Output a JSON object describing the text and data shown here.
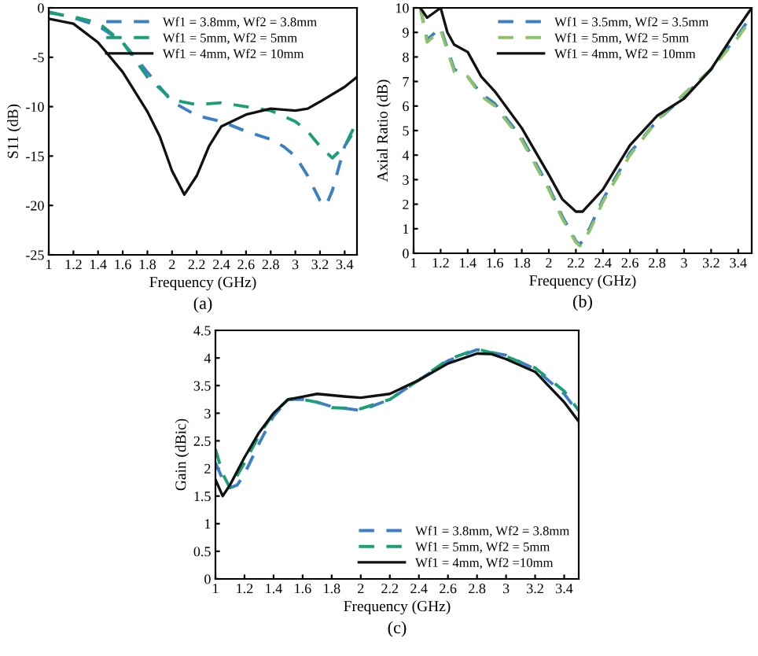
{
  "chart_data": [
    {
      "type": "line",
      "xlabel": "Frequency (GHz)",
      "ylabel": "S11 (dB)",
      "xlim": [
        1,
        3.5
      ],
      "xticks": [
        1,
        1.2,
        1.4,
        1.6,
        1.8,
        2,
        2.2,
        2.4,
        2.6,
        2.8,
        3,
        3.2,
        3.4
      ],
      "ylim": [
        -25,
        0
      ],
      "yticks": [
        -25,
        -20,
        -15,
        -10,
        -5,
        0
      ],
      "grid": false,
      "legend": "top right",
      "annotations": [
        "(a)"
      ],
      "series": [
        {
          "name": "Wf1 = 3.8mm, Wf2 = 3.8mm",
          "color": "#3b7fc4",
          "line_style": "dashed",
          "x": [
            1,
            1.2,
            1.4,
            1.6,
            1.8,
            2.0,
            2.2,
            2.4,
            2.6,
            2.8,
            2.9,
            3.0,
            3.1,
            3.2,
            3.25,
            3.3,
            3.4,
            3.5
          ],
          "values": [
            -0.4,
            -1,
            -1.8,
            -3.5,
            -6.5,
            -9.5,
            -10.9,
            -11.5,
            -12.5,
            -13.3,
            -14,
            -15,
            -17,
            -19.5,
            -20,
            -18.5,
            -14,
            -12
          ]
        },
        {
          "name": "Wf1 = 5mm, Wf2 = 5mm",
          "color": "#1a9e77",
          "line_style": "dashed",
          "x": [
            1,
            1.2,
            1.4,
            1.6,
            1.8,
            2.0,
            2.2,
            2.4,
            2.6,
            2.8,
            3.0,
            3.1,
            3.2,
            3.3,
            3.4,
            3.5
          ],
          "values": [
            -0.5,
            -0.9,
            -1.5,
            -3.5,
            -7,
            -9.3,
            -9.8,
            -9.6,
            -10,
            -10.4,
            -11.5,
            -12.5,
            -14,
            -15.2,
            -14,
            -11.5
          ]
        },
        {
          "name": "Wf1 = 4mm, Wf2 = 10mm",
          "color": "#111111",
          "line_style": "solid",
          "x": [
            1,
            1.2,
            1.4,
            1.6,
            1.8,
            1.9,
            2.0,
            2.1,
            2.2,
            2.3,
            2.4,
            2.6,
            2.8,
            3.0,
            3.1,
            3.2,
            3.4,
            3.5
          ],
          "values": [
            -1.1,
            -1.6,
            -3.5,
            -6.5,
            -10.5,
            -13,
            -16.5,
            -18.9,
            -17,
            -14,
            -12,
            -10.8,
            -10.2,
            -10.4,
            -10.2,
            -9.5,
            -8,
            -7
          ]
        }
      ]
    },
    {
      "type": "line",
      "xlabel": "Frequency (GHz)",
      "ylabel": "Axial Ratio (dB)",
      "xlim": [
        1,
        3.5
      ],
      "xticks": [
        1,
        1.2,
        1.4,
        1.6,
        1.8,
        2,
        2.2,
        2.4,
        2.6,
        2.8,
        3,
        3.2,
        3.4
      ],
      "ylim": [
        0,
        10
      ],
      "yticks": [
        0,
        1,
        2,
        3,
        4,
        5,
        6,
        7,
        8,
        9,
        10
      ],
      "grid": false,
      "legend": "top right",
      "annotations": [
        "(b)"
      ],
      "series": [
        {
          "name": "Wf1 = 3.5mm, Wf2 = 3.5mm",
          "color": "#3b7fc4",
          "line_style": "dashed",
          "x": [
            1.05,
            1.1,
            1.2,
            1.3,
            1.4,
            1.5,
            1.6,
            1.8,
            2.0,
            2.1,
            2.2,
            2.23,
            2.3,
            2.4,
            2.6,
            2.8,
            3.0,
            3.2,
            3.4,
            3.5
          ],
          "values": [
            10,
            8.7,
            9.2,
            7.5,
            7.2,
            6.5,
            6.1,
            4.7,
            2.7,
            1.5,
            0.5,
            0.35,
            1.0,
            2.2,
            4.1,
            5.4,
            6.4,
            7.5,
            8.9,
            9.7
          ]
        },
        {
          "name": "Wf1 = 5mm, Wf2 = 5mm",
          "color": "#8cc36a",
          "line_style": "dashed",
          "x": [
            1.05,
            1.1,
            1.2,
            1.3,
            1.4,
            1.5,
            1.6,
            1.8,
            2.0,
            2.1,
            2.2,
            2.23,
            2.3,
            2.4,
            2.6,
            2.8,
            3.0,
            3.2,
            3.4,
            3.5
          ],
          "values": [
            10,
            8.6,
            9.1,
            7.4,
            7.2,
            6.4,
            6.0,
            4.6,
            2.6,
            1.4,
            0.45,
            0.3,
            0.9,
            2.1,
            4.0,
            5.4,
            6.5,
            7.5,
            8.8,
            9.6
          ]
        },
        {
          "name": "Wf1 = 4mm, Wf2 = 10mm",
          "color": "#111111",
          "line_style": "solid",
          "x": [
            1.05,
            1.1,
            1.15,
            1.2,
            1.25,
            1.3,
            1.4,
            1.5,
            1.6,
            1.8,
            2.0,
            2.1,
            2.2,
            2.25,
            2.4,
            2.6,
            2.8,
            3.0,
            3.2,
            3.4,
            3.5
          ],
          "values": [
            10,
            9.6,
            9.8,
            10,
            9,
            8.5,
            8.2,
            7.2,
            6.6,
            5.1,
            3.2,
            2.2,
            1.7,
            1.7,
            2.6,
            4.4,
            5.6,
            6.3,
            7.5,
            9.2,
            10
          ]
        }
      ]
    },
    {
      "type": "line",
      "xlabel": "Frequency (GHz)",
      "ylabel": "Gain (dBic)",
      "xlim": [
        1,
        3.5
      ],
      "xticks": [
        1,
        1.2,
        1.4,
        1.6,
        1.8,
        2,
        2.2,
        2.4,
        2.6,
        2.8,
        3,
        3.2,
        3.4
      ],
      "ylim": [
        0,
        4.5
      ],
      "yticks": [
        0,
        0.5,
        1,
        1.5,
        2,
        2.5,
        3,
        3.5,
        4,
        4.5
      ],
      "grid": false,
      "legend": "bottom right",
      "annotations": [
        "(c)"
      ],
      "series": [
        {
          "name": "Wf1 = 3.8mm, Wf2 = 3.8mm",
          "color": "#3b7fc4",
          "line_style": "dashed",
          "x": [
            1.0,
            1.05,
            1.1,
            1.15,
            1.2,
            1.3,
            1.4,
            1.5,
            1.6,
            1.7,
            1.8,
            2.0,
            2.2,
            2.4,
            2.6,
            2.8,
            3.0,
            3.2,
            3.4,
            3.5
          ],
          "values": [
            2.1,
            1.8,
            1.65,
            1.7,
            1.9,
            2.45,
            2.95,
            3.25,
            3.25,
            3.2,
            3.12,
            3.05,
            3.25,
            3.6,
            3.95,
            4.15,
            4.05,
            3.8,
            3.35,
            3.0
          ]
        },
        {
          "name": "Wf1 = 5mm, Wf2 = 5mm",
          "color": "#1a9e77",
          "line_style": "dashed",
          "x": [
            1.0,
            1.05,
            1.1,
            1.2,
            1.3,
            1.4,
            1.5,
            1.6,
            1.7,
            1.8,
            2.0,
            2.2,
            2.4,
            2.6,
            2.8,
            3.0,
            3.2,
            3.4,
            3.5
          ],
          "values": [
            2.35,
            1.9,
            1.65,
            2.1,
            2.6,
            3.0,
            3.25,
            3.25,
            3.2,
            3.1,
            3.08,
            3.25,
            3.6,
            3.97,
            4.16,
            4.03,
            3.82,
            3.4,
            3.05
          ]
        },
        {
          "name": "Wf1 = 4mm, Wf2 =10mm",
          "color": "#111111",
          "line_style": "solid",
          "x": [
            1.0,
            1.05,
            1.1,
            1.2,
            1.3,
            1.4,
            1.5,
            1.6,
            1.7,
            1.9,
            2.0,
            2.2,
            2.4,
            2.6,
            2.8,
            2.9,
            3.0,
            3.2,
            3.4,
            3.5
          ],
          "values": [
            1.8,
            1.5,
            1.7,
            2.2,
            2.65,
            3.0,
            3.25,
            3.3,
            3.35,
            3.3,
            3.28,
            3.35,
            3.6,
            3.9,
            4.08,
            4.07,
            3.98,
            3.75,
            3.2,
            2.85
          ]
        }
      ]
    }
  ]
}
